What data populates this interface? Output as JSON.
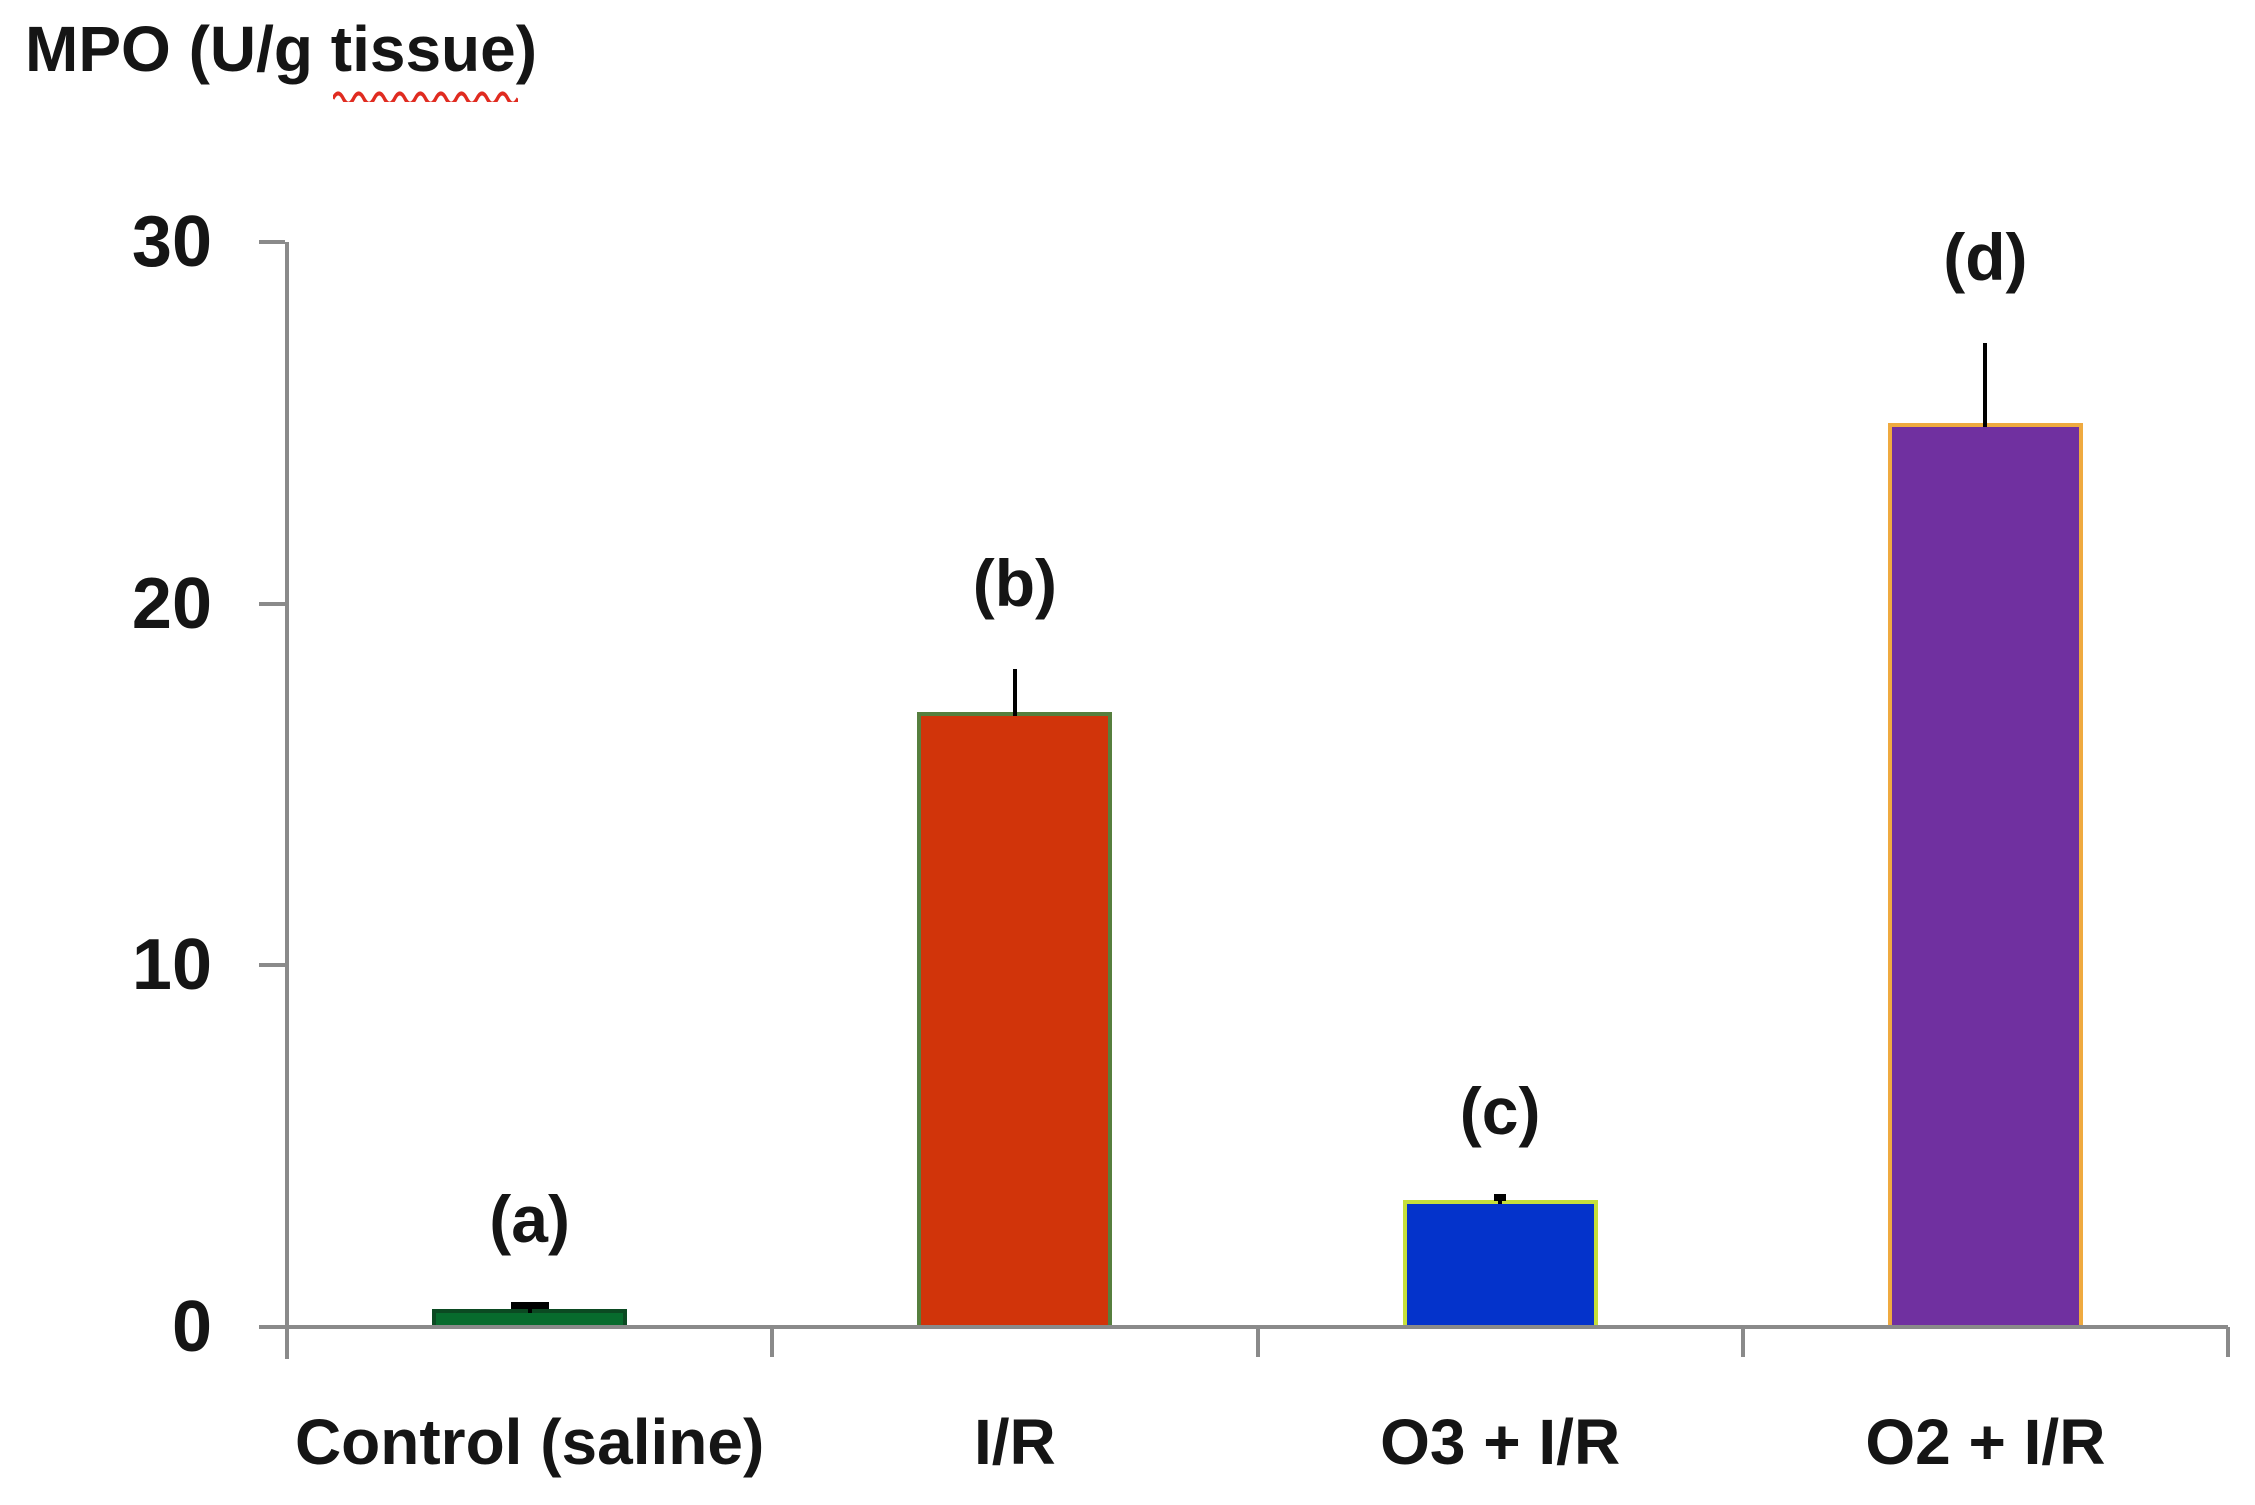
{
  "title": {
    "prefix": "MPO (U/g ",
    "wavy_word": "tissue",
    "suffix": ")"
  },
  "chart_data": {
    "type": "bar",
    "title": "MPO (U/g tissue)",
    "ylabel": "MPO (U/g tissue)",
    "xlabel": "",
    "categories": [
      "Control (saline)",
      "I/R",
      "O3 + I/R",
      "O2 + I/R"
    ],
    "values": [
      0.5,
      17,
      3.5,
      25
    ],
    "errors_upper": [
      0.1,
      1.2,
      0.1,
      2.2
    ],
    "bar_point_labels": [
      "(a)",
      "(b)",
      "(c)",
      "(d)"
    ],
    "bar_colors": [
      "#076b2d",
      "#d1340a",
      "#0433cb",
      "#7030a0"
    ],
    "bar_border_colors": [
      "#0b4a22",
      "#567f3e",
      "#c6df3a",
      "#efaa40"
    ],
    "error_cap_widths": [
      38,
      0,
      12,
      0
    ],
    "ylim": [
      0,
      30
    ],
    "yticks": [
      0,
      10,
      20,
      30
    ],
    "grid": false,
    "legend": false,
    "axis_color": "#8a8a8a",
    "error_color": "#000000",
    "text_color": "#151515",
    "spellcheck_underline_color": "#e02b20"
  }
}
